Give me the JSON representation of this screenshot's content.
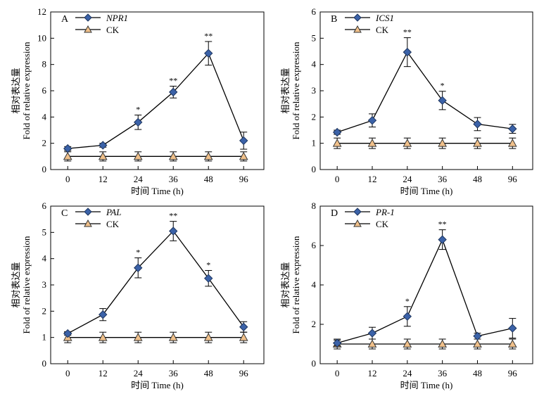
{
  "ylabel_cn": "相对表达量",
  "ylabel_en": "Fold of relative expression",
  "xlabel": "时间 Time (h)",
  "colors": {
    "treatment": "#3b62a8",
    "ck": "#f0c08a",
    "line": "#000000"
  },
  "chart_data": [
    {
      "type": "line",
      "panel": "A",
      "x": [
        "0",
        "12",
        "24",
        "36",
        "48",
        "96"
      ],
      "ylim": [
        0,
        12
      ],
      "yticks": [
        "0",
        "2",
        "4",
        "6",
        "8",
        "10",
        "12"
      ],
      "legend_position": "top-left",
      "series": [
        {
          "name": "NPR1",
          "marker": "diamond",
          "values": [
            1.6,
            1.85,
            3.6,
            5.9,
            8.85,
            2.2
          ],
          "errors": [
            0.15,
            0.15,
            0.55,
            0.45,
            0.9,
            0.65
          ],
          "significance": [
            "",
            "",
            "*",
            "**",
            "**",
            ""
          ]
        },
        {
          "name": "CK",
          "marker": "triangle",
          "values": [
            1,
            1,
            1,
            1,
            1,
            1
          ],
          "errors": [
            0.35,
            0.35,
            0.35,
            0.35,
            0.35,
            0.35
          ],
          "significance": [
            "",
            "",
            "",
            "",
            "",
            ""
          ]
        }
      ]
    },
    {
      "type": "line",
      "panel": "B",
      "x": [
        "0",
        "12",
        "24",
        "36",
        "48",
        "96"
      ],
      "ylim": [
        0,
        6
      ],
      "yticks": [
        "0",
        "1",
        "2",
        "3",
        "4",
        "5",
        "6"
      ],
      "legend_position": "top-left",
      "series": [
        {
          "name": "ICS1",
          "marker": "diamond",
          "values": [
            1.42,
            1.87,
            4.47,
            2.63,
            1.73,
            1.55
          ],
          "errors": [
            0.08,
            0.25,
            0.55,
            0.35,
            0.25,
            0.17
          ],
          "significance": [
            "",
            "",
            "**",
            "*",
            "",
            ""
          ]
        },
        {
          "name": "CK",
          "marker": "triangle",
          "values": [
            1,
            1,
            1,
            1,
            1,
            1
          ],
          "errors": [
            0.2,
            0.2,
            0.2,
            0.2,
            0.2,
            0.2
          ],
          "significance": [
            "",
            "",
            "",
            "",
            "",
            ""
          ]
        }
      ]
    },
    {
      "type": "line",
      "panel": "C",
      "x": [
        "0",
        "12",
        "24",
        "36",
        "48",
        "96"
      ],
      "ylim": [
        0,
        6
      ],
      "yticks": [
        "0",
        "1",
        "2",
        "3",
        "4",
        "5",
        "6"
      ],
      "legend_position": "top-left",
      "series": [
        {
          "name": "PAL",
          "marker": "diamond",
          "values": [
            1.15,
            1.87,
            3.65,
            5.05,
            3.25,
            1.4
          ],
          "errors": [
            0.07,
            0.23,
            0.38,
            0.37,
            0.3,
            0.2
          ],
          "significance": [
            "",
            "",
            "*",
            "**",
            "*",
            ""
          ]
        },
        {
          "name": "CK",
          "marker": "triangle",
          "values": [
            1,
            1,
            1,
            1,
            1,
            1
          ],
          "errors": [
            0.2,
            0.2,
            0.2,
            0.2,
            0.2,
            0.2
          ],
          "significance": [
            "",
            "",
            "",
            "",
            "",
            ""
          ]
        }
      ]
    },
    {
      "type": "line",
      "panel": "D",
      "x": [
        "0",
        "12",
        "24",
        "36",
        "48",
        "96"
      ],
      "ylim": [
        0,
        8
      ],
      "yticks": [
        "0",
        "2",
        "4",
        "6",
        "8"
      ],
      "legend_position": "top-left",
      "series": [
        {
          "name": "PR-1",
          "marker": "diamond",
          "values": [
            1.05,
            1.55,
            2.4,
            6.3,
            1.4,
            1.8
          ],
          "errors": [
            0.15,
            0.3,
            0.5,
            0.5,
            0.15,
            0.5
          ],
          "significance": [
            "",
            "",
            "*",
            "**",
            "",
            ""
          ]
        },
        {
          "name": "CK",
          "marker": "triangle",
          "values": [
            1,
            1,
            1,
            1,
            1,
            1
          ],
          "errors": [
            0.25,
            0.25,
            0.25,
            0.25,
            0.25,
            0.25
          ],
          "significance": [
            "",
            "",
            "",
            "",
            "",
            ""
          ]
        }
      ]
    }
  ]
}
